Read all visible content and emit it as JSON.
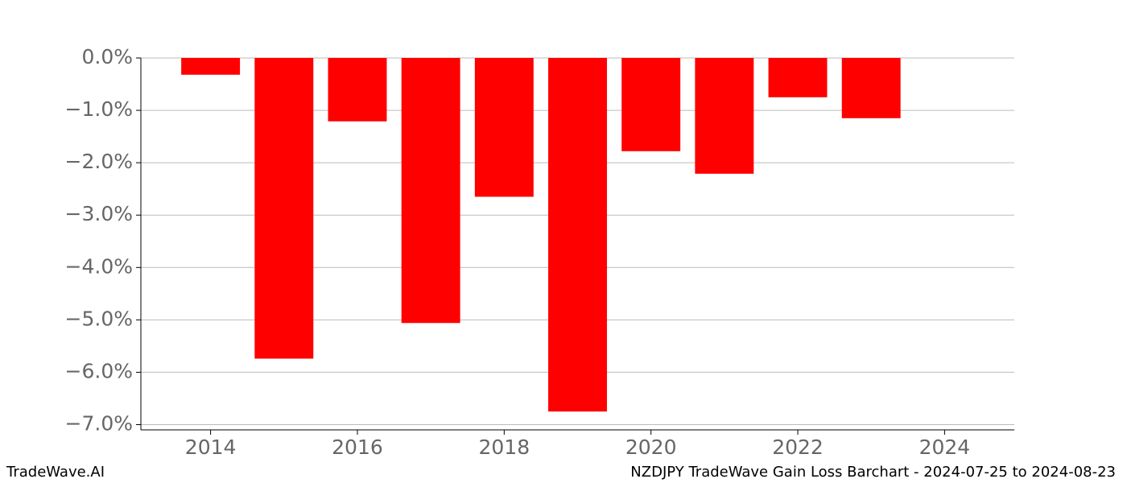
{
  "chart_data": {
    "type": "bar",
    "x": [
      2014,
      2015,
      2016,
      2017,
      2018,
      2019,
      2020,
      2021,
      2022,
      2023
    ],
    "values": [
      -0.32,
      -5.74,
      -1.21,
      -5.06,
      -2.65,
      -6.75,
      -1.78,
      -2.21,
      -0.75,
      -1.15
    ],
    "color": "#ff0000",
    "xlim": [
      2013.05,
      2024.95
    ],
    "xticks": [
      2014,
      2016,
      2018,
      2020,
      2022,
      2024
    ],
    "ylim": [
      -7.1,
      0
    ],
    "yticks": [
      {
        "value": 0,
        "label": "0.0%"
      },
      {
        "value": -1,
        "label": "−1.0%"
      },
      {
        "value": -2,
        "label": "−2.0%"
      },
      {
        "value": -3,
        "label": "−3.0%"
      },
      {
        "value": -4,
        "label": "−4.0%"
      },
      {
        "value": -5,
        "label": "−5.0%"
      },
      {
        "value": -6,
        "label": "−6.0%"
      },
      {
        "value": -7,
        "label": "−7.0%"
      }
    ],
    "grid": true,
    "footer_left": "TradeWave.AI",
    "footer_right": "NZDJPY TradeWave Gain Loss Barchart - 2024-07-25 to 2024-08-23"
  }
}
